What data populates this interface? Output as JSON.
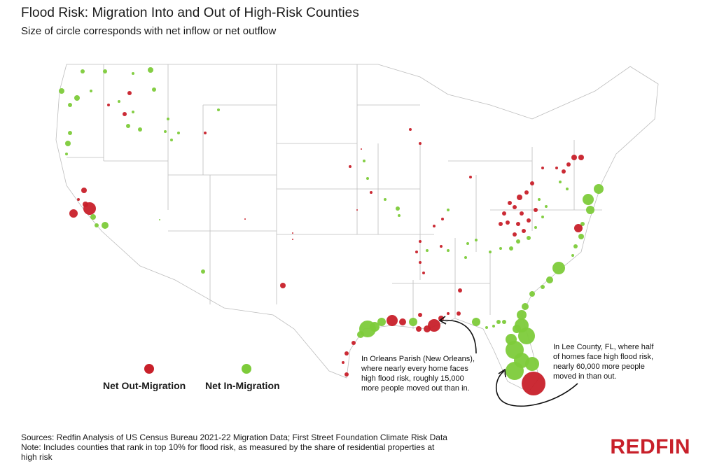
{
  "title": "Flood Risk: Migration Into and Out of High-Risk Counties",
  "subtitle": "Size of circle corresponds with net inflow or net outflow",
  "colors": {
    "out": "#c8202a",
    "in": "#7dcb3a",
    "border": "#bdbdbd",
    "arrow": "#111111",
    "logo": "#c8202a"
  },
  "legend": {
    "out_label": "Net Out-Migration",
    "in_label": "Net In-Migration"
  },
  "annotations": {
    "orleans": [
      "In Orleans Parish (New Orleans),",
      "where nearly every home faces",
      "high flood risk, roughly 15,000",
      "more people moved out than in."
    ],
    "lee": [
      "In Lee County, FL, where half",
      "of homes face high flood risk,",
      "nearly 60,000 more people",
      "moved in than out."
    ]
  },
  "footer": {
    "sources": "Sources: Redfin Analysis of US Census Bureau 2021-22 Migration Data; First Street Foundation Climate Risk Data",
    "note_line1": "Note: Includes counties that rank in top 10% for flood risk, as measured by the share of residential properties at",
    "note_line2": "high risk"
  },
  "logo": "REDFIN"
}
